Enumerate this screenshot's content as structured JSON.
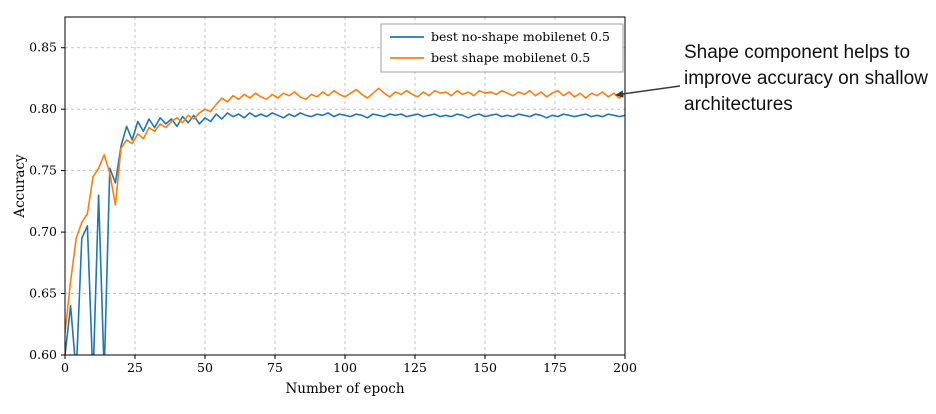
{
  "annotation": {
    "text": "Shape component helps to improve accuracy on shallow architectures"
  },
  "chart_data": {
    "type": "line",
    "title": "",
    "xlabel": "Number of epoch",
    "ylabel": "Accuracy",
    "xlim": [
      0,
      200
    ],
    "ylim": [
      0.6,
      0.875
    ],
    "grid": true,
    "grid_style": "dashed",
    "legend_position": "upper center inside",
    "xticks": [
      0,
      25,
      50,
      75,
      100,
      125,
      150,
      175,
      200
    ],
    "xtick_labels": [
      "0",
      "25",
      "50",
      "75",
      "100",
      "125",
      "150",
      "175",
      "200"
    ],
    "yticks": [
      0.6,
      0.65,
      0.7,
      0.75,
      0.8,
      0.85
    ],
    "ytick_labels": [
      "0.60",
      "0.65",
      "0.70",
      "0.75",
      "0.80",
      "0.85"
    ],
    "x": [
      0,
      2,
      4,
      6,
      8,
      10,
      12,
      14,
      16,
      18,
      20,
      22,
      24,
      26,
      28,
      30,
      32,
      34,
      36,
      38,
      40,
      42,
      44,
      46,
      48,
      50,
      52,
      54,
      56,
      58,
      60,
      62,
      64,
      66,
      68,
      70,
      72,
      74,
      76,
      78,
      80,
      82,
      84,
      86,
      88,
      90,
      92,
      94,
      96,
      98,
      100,
      102,
      104,
      106,
      108,
      110,
      112,
      114,
      116,
      118,
      120,
      122,
      124,
      126,
      128,
      130,
      132,
      134,
      136,
      138,
      140,
      142,
      144,
      146,
      148,
      150,
      152,
      154,
      156,
      158,
      160,
      162,
      164,
      166,
      168,
      170,
      172,
      174,
      176,
      178,
      180,
      182,
      184,
      186,
      188,
      190,
      192,
      194,
      196,
      198,
      200
    ],
    "series": [
      {
        "name": "best no-shape mobilenet 0.5",
        "color": "#1f77b4",
        "values": [
          0.6,
          0.64,
          0.585,
          0.695,
          0.705,
          0.58,
          0.73,
          0.585,
          0.752,
          0.74,
          0.77,
          0.786,
          0.775,
          0.79,
          0.782,
          0.792,
          0.785,
          0.793,
          0.788,
          0.792,
          0.786,
          0.794,
          0.789,
          0.795,
          0.788,
          0.793,
          0.79,
          0.796,
          0.792,
          0.797,
          0.794,
          0.796,
          0.793,
          0.797,
          0.794,
          0.796,
          0.794,
          0.797,
          0.795,
          0.793,
          0.796,
          0.794,
          0.797,
          0.795,
          0.794,
          0.796,
          0.795,
          0.797,
          0.794,
          0.796,
          0.795,
          0.794,
          0.796,
          0.795,
          0.793,
          0.796,
          0.795,
          0.794,
          0.796,
          0.795,
          0.796,
          0.794,
          0.795,
          0.796,
          0.794,
          0.795,
          0.796,
          0.794,
          0.795,
          0.794,
          0.796,
          0.795,
          0.793,
          0.795,
          0.796,
          0.794,
          0.795,
          0.796,
          0.794,
          0.795,
          0.794,
          0.796,
          0.795,
          0.794,
          0.796,
          0.795,
          0.793,
          0.795,
          0.794,
          0.796,
          0.795,
          0.794,
          0.795,
          0.796,
          0.794,
          0.795,
          0.794,
          0.796,
          0.795,
          0.794,
          0.795
        ]
      },
      {
        "name": "best shape mobilenet 0.5",
        "color": "#ff7f0e",
        "values": [
          0.618,
          0.66,
          0.695,
          0.708,
          0.715,
          0.745,
          0.752,
          0.763,
          0.748,
          0.722,
          0.768,
          0.775,
          0.772,
          0.78,
          0.776,
          0.785,
          0.782,
          0.788,
          0.785,
          0.79,
          0.793,
          0.789,
          0.795,
          0.792,
          0.797,
          0.8,
          0.798,
          0.804,
          0.809,
          0.806,
          0.811,
          0.808,
          0.812,
          0.809,
          0.813,
          0.81,
          0.808,
          0.812,
          0.809,
          0.813,
          0.811,
          0.814,
          0.81,
          0.808,
          0.812,
          0.81,
          0.814,
          0.811,
          0.815,
          0.812,
          0.81,
          0.813,
          0.816,
          0.812,
          0.809,
          0.813,
          0.817,
          0.813,
          0.81,
          0.814,
          0.812,
          0.815,
          0.812,
          0.81,
          0.814,
          0.811,
          0.815,
          0.813,
          0.814,
          0.811,
          0.815,
          0.812,
          0.814,
          0.811,
          0.815,
          0.813,
          0.814,
          0.812,
          0.815,
          0.813,
          0.811,
          0.814,
          0.812,
          0.815,
          0.811,
          0.814,
          0.81,
          0.813,
          0.815,
          0.811,
          0.814,
          0.81,
          0.813,
          0.809,
          0.813,
          0.811,
          0.814,
          0.81,
          0.813,
          0.809,
          0.813
        ]
      }
    ]
  },
  "style": {
    "grid_color": "#b9b9b9",
    "axis_color": "#000000",
    "legend_edge_color": "#a0a0a0",
    "annotation_arrow_color": "#3a3a3a"
  }
}
